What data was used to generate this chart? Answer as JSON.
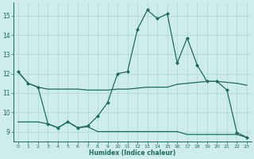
{
  "xlabel": "Humidex (Indice chaleur)",
  "bg_color": "#ceecea",
  "line_color": "#1e6b5e",
  "grid_color": "#aad8d3",
  "spine_color": "#1e6b5e",
  "xlim": [
    -0.5,
    23.5
  ],
  "ylim": [
    8.5,
    15.7
  ],
  "xticks": [
    0,
    1,
    2,
    3,
    4,
    5,
    6,
    7,
    8,
    9,
    10,
    11,
    12,
    13,
    14,
    15,
    16,
    17,
    18,
    19,
    20,
    21,
    22,
    23
  ],
  "yticks": [
    9,
    10,
    11,
    12,
    13,
    14,
    15
  ],
  "line1_y": [
    12.1,
    11.5,
    11.3,
    11.2,
    11.2,
    11.2,
    11.2,
    11.15,
    11.15,
    11.15,
    11.2,
    11.2,
    11.25,
    11.3,
    11.3,
    11.3,
    11.45,
    11.5,
    11.55,
    11.6,
    11.6,
    11.55,
    11.5,
    11.4
  ],
  "line2_y": [
    12.1,
    11.5,
    11.3,
    9.4,
    9.2,
    9.5,
    9.2,
    9.3,
    9.8,
    10.5,
    12.0,
    12.1,
    14.3,
    15.3,
    14.85,
    15.1,
    12.55,
    13.85,
    12.45,
    11.6,
    11.6,
    11.15,
    8.95,
    8.7
  ],
  "line3_y": [
    9.5,
    9.5,
    9.5,
    9.4,
    9.2,
    9.5,
    9.2,
    9.25,
    9.0,
    9.0,
    9.0,
    9.0,
    9.0,
    9.0,
    9.0,
    9.0,
    9.0,
    8.85,
    8.85,
    8.85,
    8.85,
    8.85,
    8.85,
    8.7
  ]
}
